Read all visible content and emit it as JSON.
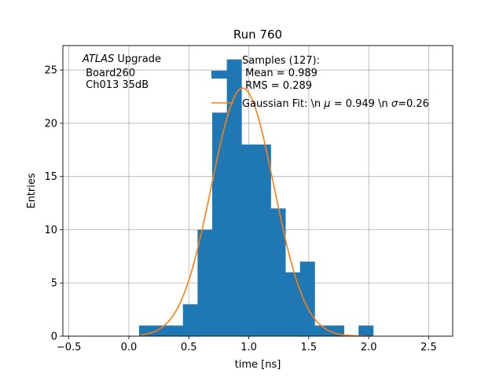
{
  "chart_data": {
    "type": "bar",
    "title": "Run 760",
    "xlabel": "time [ns]",
    "ylabel": "Entries",
    "xlim": [
      -0.55,
      2.7
    ],
    "ylim": [
      0,
      27.3
    ],
    "xticks": [
      -0.5,
      0.0,
      0.5,
      1.0,
      1.5,
      2.0,
      2.5
    ],
    "xtick_labels": [
      "−0.5",
      "0.0",
      "0.5",
      "1.0",
      "1.5",
      "2.0",
      "2.5"
    ],
    "yticks": [
      0,
      5,
      10,
      15,
      20,
      25
    ],
    "ytick_labels": [
      "0",
      "5",
      "10",
      "15",
      "20",
      "25"
    ],
    "grid": true,
    "colors": {
      "histogram": "#1f77b4",
      "fit": "#ff7f0e",
      "grid": "#b0b0b0"
    },
    "histogram": {
      "bin_edges": [
        0.085,
        0.207,
        0.329,
        0.451,
        0.573,
        0.695,
        0.817,
        0.939,
        1.061,
        1.183,
        1.305,
        1.427,
        1.549,
        1.671,
        1.793,
        1.915,
        2.037
      ],
      "counts": [
        1,
        1,
        1,
        3,
        10,
        21,
        26,
        18,
        18,
        12,
        6,
        7,
        1,
        1,
        0,
        1
      ]
    },
    "gaussian_fit": {
      "mu": 0.949,
      "sigma": 0.26,
      "amplitude": 23.3,
      "x_range": [
        0.1,
        1.98
      ]
    },
    "annotation": {
      "line1_italic": "ATLAS",
      "line1_rest": " Upgrade",
      "line2": " Board260",
      "line3": " Ch013 35dB"
    },
    "legend": {
      "samples_lines": [
        "Samples (127):",
        " Mean = 0.989",
        " RMS = 0.289"
      ],
      "fit_prefix": "Gaussian Fit: \\n ",
      "mu_symbol": "μ",
      "fit_mid": " = 0.949 \\n ",
      "sigma_symbol": "σ",
      "fit_suffix": "=0.26"
    }
  }
}
